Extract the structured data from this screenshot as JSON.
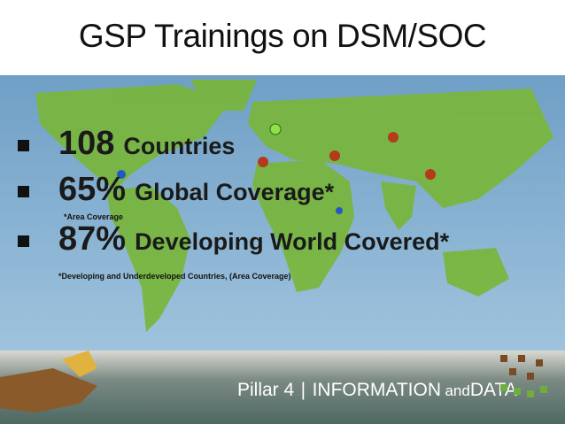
{
  "title": "GSP Trainings on DSM/SOC",
  "bullets": [
    {
      "figure": "108",
      "label": "Countries"
    },
    {
      "figure": "65%",
      "label": "Global Coverage*",
      "note": "*Area Coverage"
    },
    {
      "figure": "87%",
      "label": "Developing World Covered*"
    }
  ],
  "footnote": "*Developing and Underdeveloped Countries, (Area Coverage)",
  "footer": {
    "pillar": "Pillar 4",
    "section": "INFORMATION",
    "joiner": "and",
    "section_end": "DATA"
  }
}
